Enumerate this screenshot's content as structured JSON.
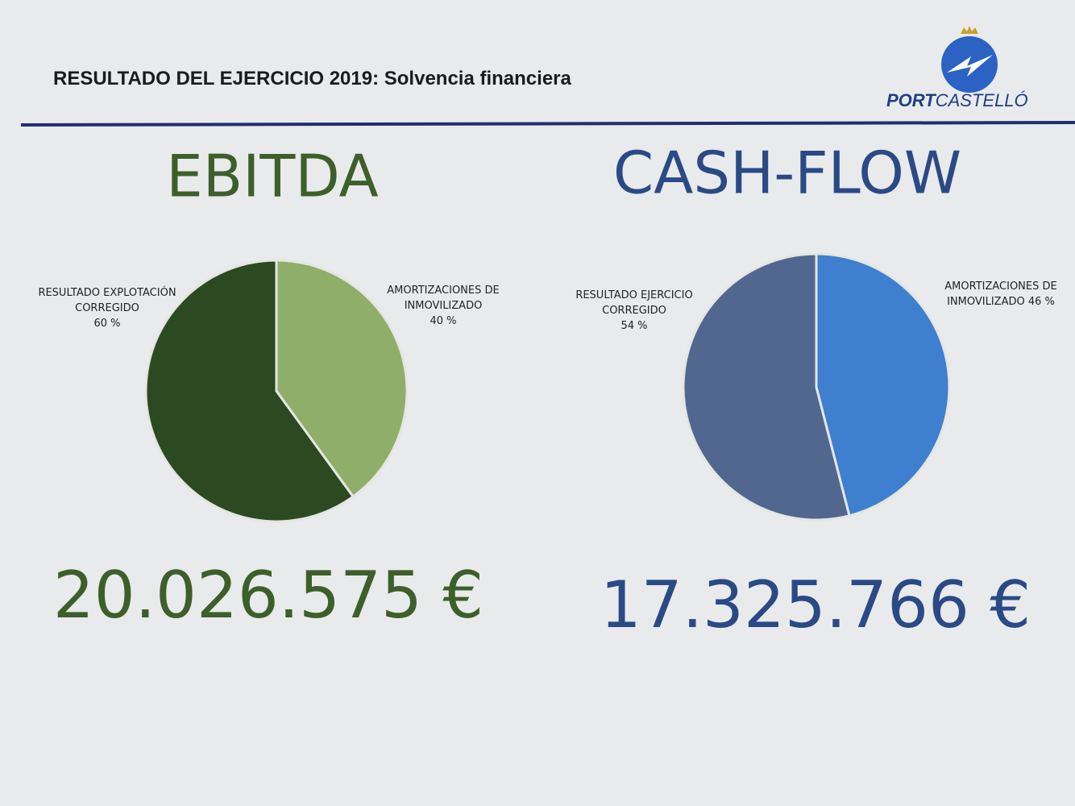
{
  "header": {
    "title": "RESULTADO DEL EJERCICIO 2019: Solvencia financiera",
    "logo": {
      "bold": "PORT",
      "light": "CASTELLÓ"
    }
  },
  "chart_data": [
    {
      "type": "pie",
      "title": "EBITDA",
      "title_color": "#3d5f2a",
      "categories": [
        "RESULTADO EXPLOTACIÓN CORREGIDO",
        "AMORTIZACIONES DE INMOVILIZADO"
      ],
      "values": [
        60,
        40
      ],
      "value_labels": [
        "60 %",
        "40 %"
      ],
      "colors": [
        "#2c4a22",
        "#8fae6a"
      ],
      "total": "20.026.575 €"
    },
    {
      "type": "pie",
      "title": "CASH-FLOW",
      "title_color": "#2a4a86",
      "categories": [
        "RESULTADO EJERCICIO CORREGIDO",
        "AMORTIZACIONES DE INMOVILIZADO"
      ],
      "values": [
        54,
        46
      ],
      "value_labels": [
        "54 %",
        "46 %"
      ],
      "colors": [
        "#51678f",
        "#3e7fd0"
      ],
      "total": "17.325.766 €"
    }
  ]
}
